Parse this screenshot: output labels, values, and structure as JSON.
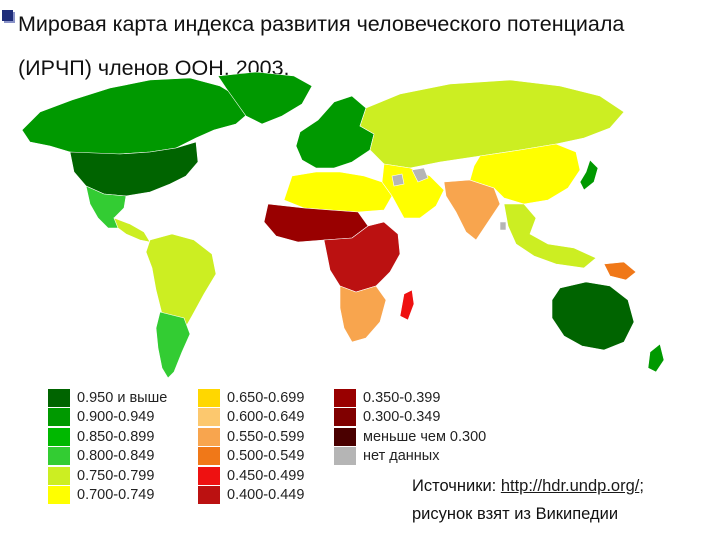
{
  "title": {
    "line1": "Мировая карта индекса развития человеческого потенциала",
    "line2": "(ИРЧП) членов ООН, 2003."
  },
  "legend": {
    "columns": [
      [
        {
          "label": "0.950 и выше",
          "color": "#006400"
        },
        {
          "label": "0.900-0.949",
          "color": "#009900"
        },
        {
          "label": "0.850-0.899",
          "color": "#00b800"
        },
        {
          "label": "0.800-0.849",
          "color": "#33cc33"
        },
        {
          "label": "0.750-0.799",
          "color": "#ccee22"
        },
        {
          "label": "0.700-0.749",
          "color": "#ffff00"
        }
      ],
      [
        {
          "label": "0.650-0.699",
          "color": "#ffd700"
        },
        {
          "label": "0.600-0.649",
          "color": "#fcc86e"
        },
        {
          "label": "0.550-0.599",
          "color": "#f8a54e"
        },
        {
          "label": "0.500-0.549",
          "color": "#f07818"
        },
        {
          "label": "0.450-0.499",
          "color": "#ee1111"
        },
        {
          "label": "0.400-0.449",
          "color": "#bb1111"
        }
      ],
      [
        {
          "label": "0.350-0.399",
          "color": "#990000"
        },
        {
          "label": "0.300-0.349",
          "color": "#800000"
        },
        {
          "label": "меньше чем 0.300",
          "color": "#4a0000"
        },
        {
          "label": "нет данных",
          "color": "#b5b5b5"
        }
      ]
    ]
  },
  "sources": {
    "prefix": "Источники: ",
    "link_text": "http://hdr.undp.org/",
    "suffix": ";",
    "line2": "рисунок взят из Википедии"
  },
  "map": {
    "regions": [
      {
        "name": "north-america-north",
        "color": "#009900"
      },
      {
        "name": "greenland",
        "color": "#009900"
      },
      {
        "name": "usa",
        "color": "#006400"
      },
      {
        "name": "mexico",
        "color": "#33cc33"
      },
      {
        "name": "central-america",
        "color": "#ccee22"
      },
      {
        "name": "south-america",
        "color": "#ccee22"
      },
      {
        "name": "argentina-chile",
        "color": "#33cc33"
      },
      {
        "name": "europe",
        "color": "#009900"
      },
      {
        "name": "russia",
        "color": "#ccee22"
      },
      {
        "name": "north-africa",
        "color": "#ffff00"
      },
      {
        "name": "west-africa",
        "color": "#990000"
      },
      {
        "name": "central-africa",
        "color": "#bb1111"
      },
      {
        "name": "southern-africa",
        "color": "#f8a54e"
      },
      {
        "name": "middle-east",
        "color": "#ffff00"
      },
      {
        "name": "south-asia",
        "color": "#f8a54e"
      },
      {
        "name": "china",
        "color": "#ffff00"
      },
      {
        "name": "southeast-asia",
        "color": "#ccee22"
      },
      {
        "name": "japan",
        "color": "#009900"
      },
      {
        "name": "australia",
        "color": "#006400"
      },
      {
        "name": "new-zealand",
        "color": "#009900"
      },
      {
        "name": "madagascar",
        "color": "#ee1111"
      },
      {
        "name": "papua",
        "color": "#f07818"
      },
      {
        "name": "no-data",
        "color": "#b5b5b5"
      }
    ]
  }
}
